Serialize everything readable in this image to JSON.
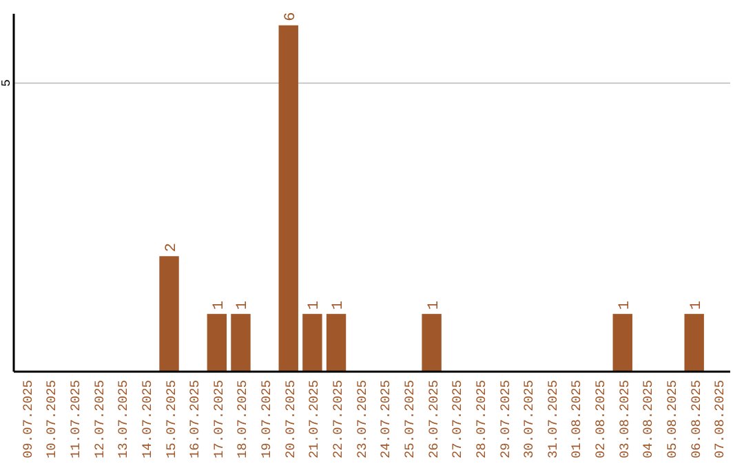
{
  "chart_data": {
    "type": "bar",
    "categories": [
      "09.07.2025",
      "10.07.2025",
      "11.07.2025",
      "12.07.2025",
      "13.07.2025",
      "14.07.2025",
      "15.07.2025",
      "16.07.2025",
      "17.07.2025",
      "18.07.2025",
      "19.07.2025",
      "20.07.2025",
      "21.07.2025",
      "22.07.2025",
      "23.07.2025",
      "24.07.2025",
      "25.07.2025",
      "26.07.2025",
      "27.07.2025",
      "28.07.2025",
      "29.07.2025",
      "30.07.2025",
      "31.07.2025",
      "01.08.2025",
      "02.08.2025",
      "03.08.2025",
      "04.08.2025",
      "05.08.2025",
      "06.08.2025",
      "07.08.2025"
    ],
    "values": [
      0,
      0,
      0,
      0,
      0,
      0,
      2,
      0,
      1,
      1,
      0,
      6,
      1,
      1,
      0,
      0,
      0,
      1,
      0,
      0,
      0,
      0,
      0,
      0,
      0,
      1,
      0,
      0,
      1,
      0
    ],
    "value_labels": [
      null,
      null,
      null,
      null,
      null,
      null,
      "2",
      null,
      "1",
      "1",
      null,
      "6",
      "1",
      "1",
      null,
      null,
      null,
      "1",
      null,
      null,
      null,
      null,
      null,
      null,
      null,
      "1",
      null,
      null,
      "1",
      null
    ],
    "color": "#a0582a",
    "ylim": [
      0,
      6.2
    ],
    "yticks": [
      5
    ],
    "grid": "y"
  }
}
